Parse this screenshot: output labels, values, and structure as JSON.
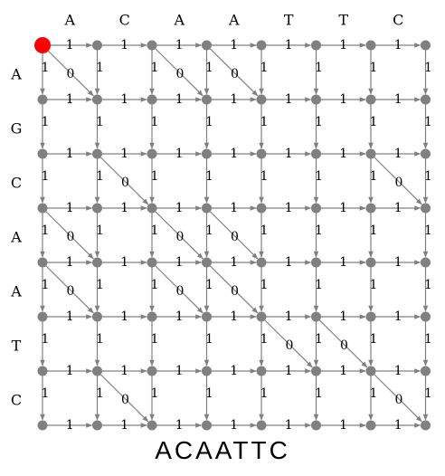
{
  "diagram": {
    "column_letters": [
      "A",
      "C",
      "A",
      "A",
      "T",
      "T",
      "C"
    ],
    "row_letters": [
      "A",
      "G",
      "C",
      "A",
      "A",
      "T",
      "C"
    ],
    "horizontal_weight": "1",
    "vertical_weight": "1",
    "diagonal_weight": "0",
    "caption": "ACAATTC",
    "colors": {
      "node": "#808080",
      "edge": "#808080",
      "start_node": "#ff0000",
      "label": "#000000"
    }
  }
}
